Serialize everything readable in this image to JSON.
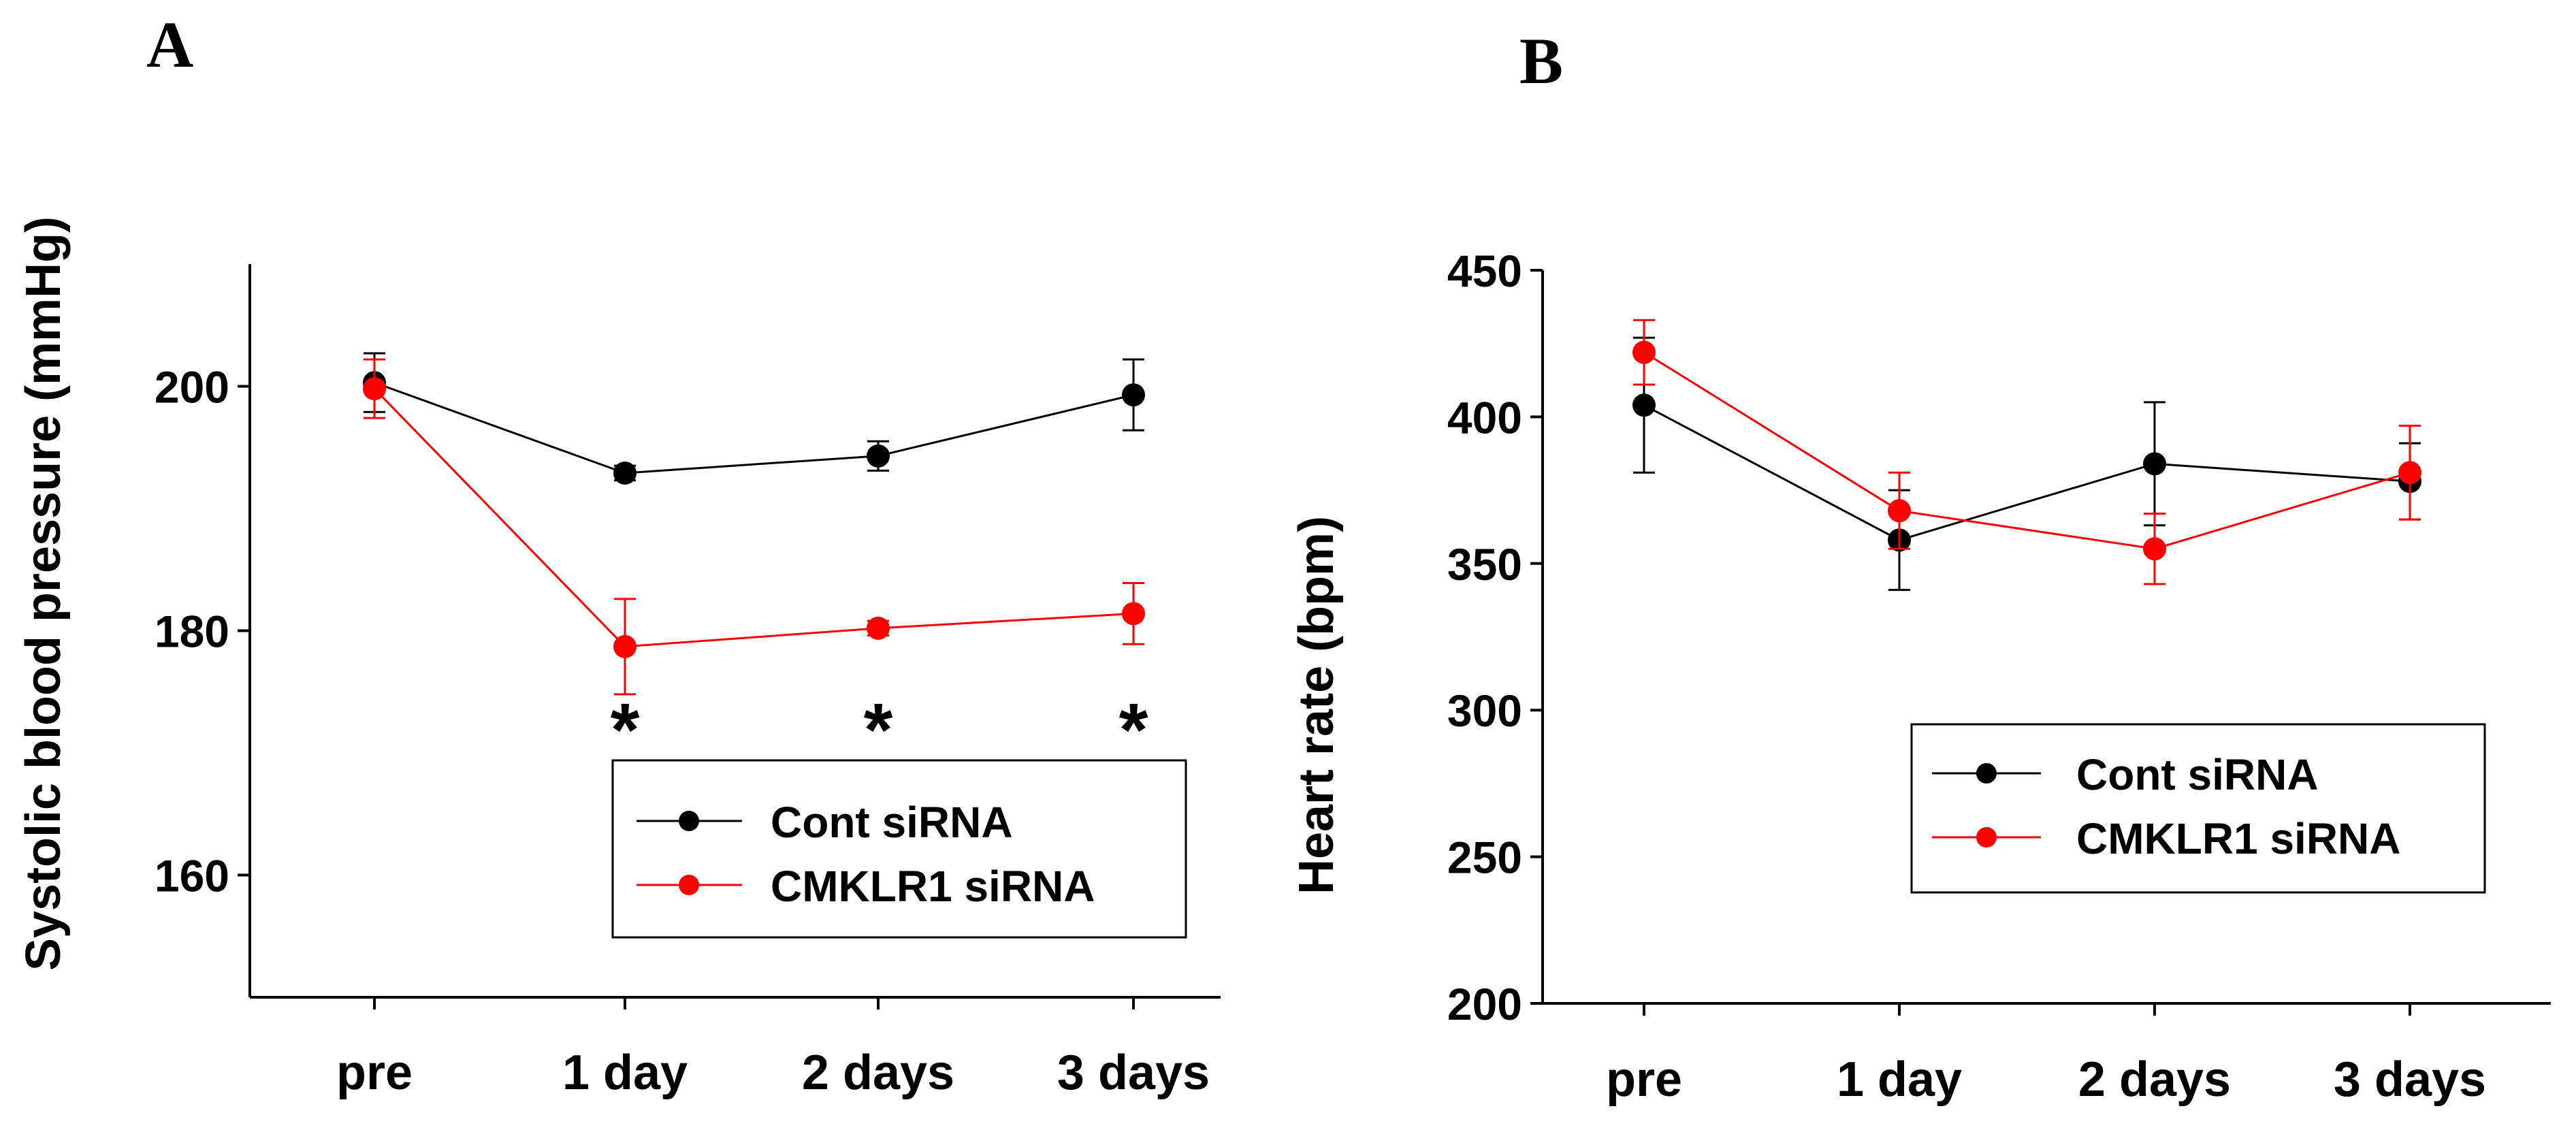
{
  "chart_data": [
    {
      "panel_label": "A",
      "type": "line",
      "title": "",
      "xlabel": "",
      "ylabel": "Systolic blood pressure (mmHg)",
      "categories": [
        "pre",
        "1 day",
        "2 days",
        "3 days"
      ],
      "ylim": [
        150,
        210
      ],
      "yticks": [
        160,
        180,
        200
      ],
      "grid": false,
      "legend_position": "bottom-right",
      "series": [
        {
          "name": "Cont siRNA",
          "color": "#000000",
          "values": [
            200.3,
            192.9,
            194.3,
            199.3
          ],
          "errors": [
            2.4,
            0.6,
            1.2,
            2.9
          ]
        },
        {
          "name": "CMKLR1 siRNA",
          "color": "#ff0000",
          "values": [
            199.8,
            178.7,
            180.2,
            181.4
          ],
          "errors": [
            2.4,
            3.9,
            0.6,
            2.5
          ]
        }
      ],
      "annotations": [
        {
          "text": "*",
          "category": "1 day"
        },
        {
          "text": "*",
          "category": "2 days"
        },
        {
          "text": "*",
          "category": "3 days"
        }
      ]
    },
    {
      "panel_label": "B",
      "type": "line",
      "title": "",
      "xlabel": "",
      "ylabel": "Heart rate (bpm)",
      "categories": [
        "pre",
        "1 day",
        "2 days",
        "3 days"
      ],
      "ylim": [
        200,
        450
      ],
      "yticks": [
        200,
        250,
        300,
        350,
        400,
        450
      ],
      "grid": false,
      "legend_position": "bottom-right",
      "series": [
        {
          "name": "Cont siRNA",
          "color": "#000000",
          "values": [
            404,
            358,
            384,
            378
          ],
          "errors": [
            23,
            17,
            21,
            13
          ]
        },
        {
          "name": "CMKLR1 siRNA",
          "color": "#ff0000",
          "values": [
            422,
            368,
            355,
            381
          ],
          "errors": [
            11,
            13,
            12,
            16
          ]
        }
      ],
      "annotations": []
    }
  ]
}
